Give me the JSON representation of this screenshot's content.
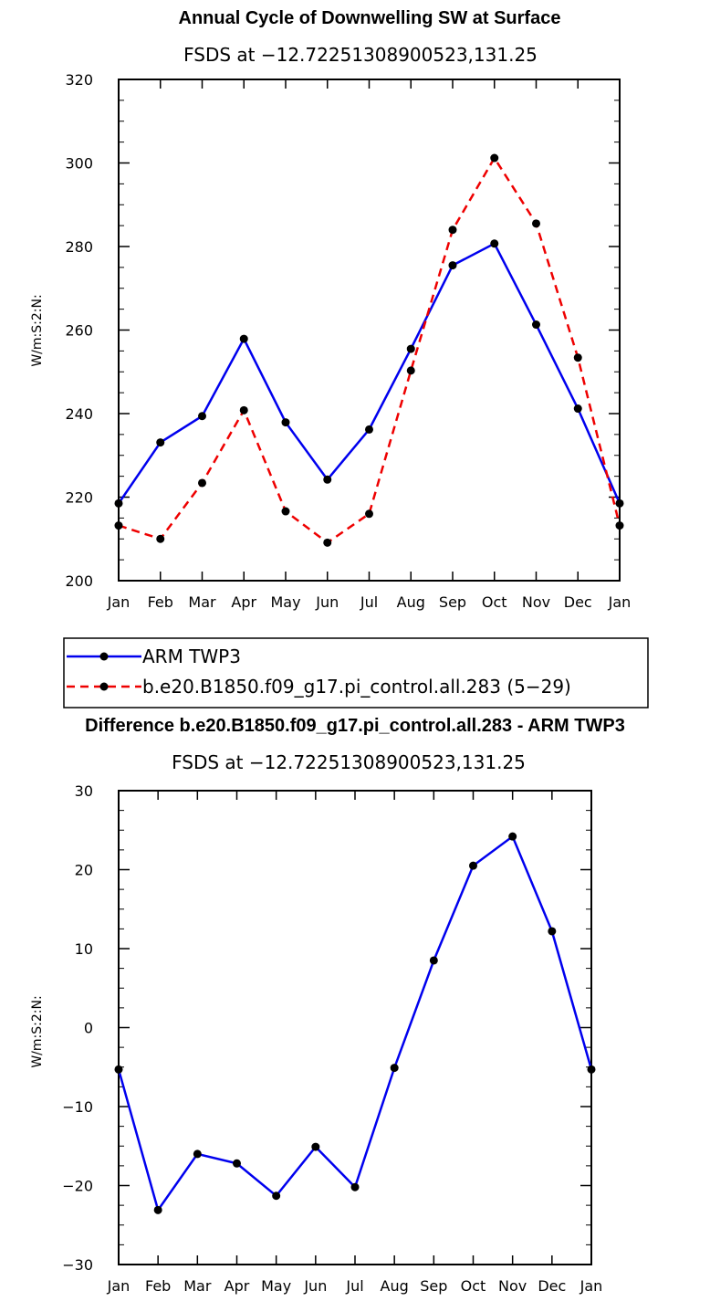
{
  "chart_data": [
    {
      "type": "line",
      "title": "Annual Cycle of Downwelling SW at Surface",
      "subtitle": "FSDS at −12.72251308900523,131.25",
      "xlabel": "",
      "ylabel": "W/m:S:2:N:",
      "categories": [
        "Jan",
        "Feb",
        "Mar",
        "Apr",
        "May",
        "Jun",
        "Jul",
        "Aug",
        "Sep",
        "Oct",
        "Nov",
        "Dec",
        "Jan"
      ],
      "ylim": [
        200,
        320
      ],
      "yticks": [
        "200",
        "220",
        "240",
        "260",
        "280",
        "300",
        "320"
      ],
      "grid": false,
      "series": [
        {
          "name": "ARM TWP3",
          "color": "#0000ee",
          "dash": "solid",
          "values": [
            218.5,
            233.1,
            239.4,
            257.9,
            237.9,
            224.2,
            236.2,
            255.5,
            275.5,
            280.7,
            261.3,
            241.2,
            218.5
          ]
        },
        {
          "name": "b.e20.B1850.f09_g17.pi_control.all.283 (5−29)",
          "color": "#ee0000",
          "dash": "dashed",
          "values": [
            213.2,
            210.0,
            223.4,
            240.8,
            216.6,
            209.1,
            216.0,
            250.3,
            284.0,
            301.2,
            285.5,
            253.4,
            213.2
          ]
        }
      ],
      "legend": "below"
    },
    {
      "type": "line",
      "title": "Difference b.e20.B1850.f09_g17.pi_control.all.283 - ARM TWP3",
      "subtitle": "FSDS at −12.72251308900523,131.25",
      "xlabel": "",
      "ylabel": "W/m:S:2:N:",
      "categories": [
        "Jan",
        "Feb",
        "Mar",
        "Apr",
        "May",
        "Jun",
        "Jul",
        "Aug",
        "Sep",
        "Oct",
        "Nov",
        "Dec",
        "Jan"
      ],
      "ylim": [
        -30,
        30
      ],
      "yticks": [
        "−30",
        "−20",
        "−10",
        "0",
        "10",
        "20",
        "30"
      ],
      "grid": false,
      "series": [
        {
          "color": "#0000ee",
          "dash": "solid",
          "values": [
            -5.3,
            -23.1,
            -16.0,
            -17.2,
            -21.3,
            -15.1,
            -20.2,
            -5.1,
            8.5,
            20.5,
            24.2,
            12.2,
            -5.3
          ]
        }
      ]
    }
  ]
}
